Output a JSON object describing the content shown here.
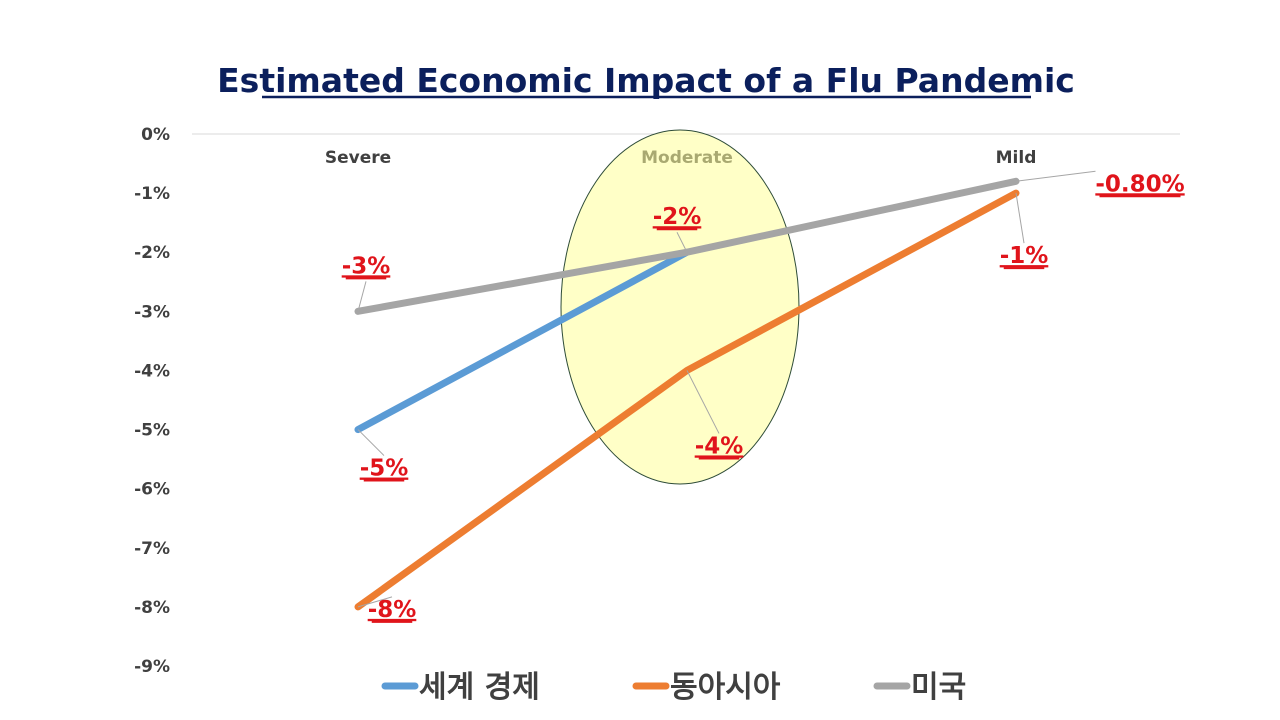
{
  "chart_data": {
    "type": "line",
    "title": "Estimated Economic Impact of a Flu Pandemic",
    "categories": [
      "Severe",
      "Moderate",
      "Mild"
    ],
    "ylim": [
      -9,
      0
    ],
    "yticks": [
      "0%",
      "-1%",
      "-2%",
      "-3%",
      "-4%",
      "-5%",
      "-6%",
      "-7%",
      "-8%",
      "-9%"
    ],
    "series": [
      {
        "name": "세계 경제",
        "color": "#5b9bd5",
        "values": [
          -5,
          -2,
          null
        ],
        "labels": [
          "-5%",
          "-2%",
          ""
        ]
      },
      {
        "name": "동아시아",
        "color": "#ed7d31",
        "values": [
          -8,
          -4,
          -1
        ],
        "labels": [
          "-8%",
          "-4%",
          "-1%"
        ]
      },
      {
        "name": "미국",
        "color": "#a5a5a5",
        "values": [
          -3,
          -2,
          -0.8
        ],
        "labels": [
          "-3%",
          "",
          "-0.80%"
        ]
      }
    ],
    "highlight": {
      "category": "Moderate",
      "color": "#ffff99"
    }
  }
}
